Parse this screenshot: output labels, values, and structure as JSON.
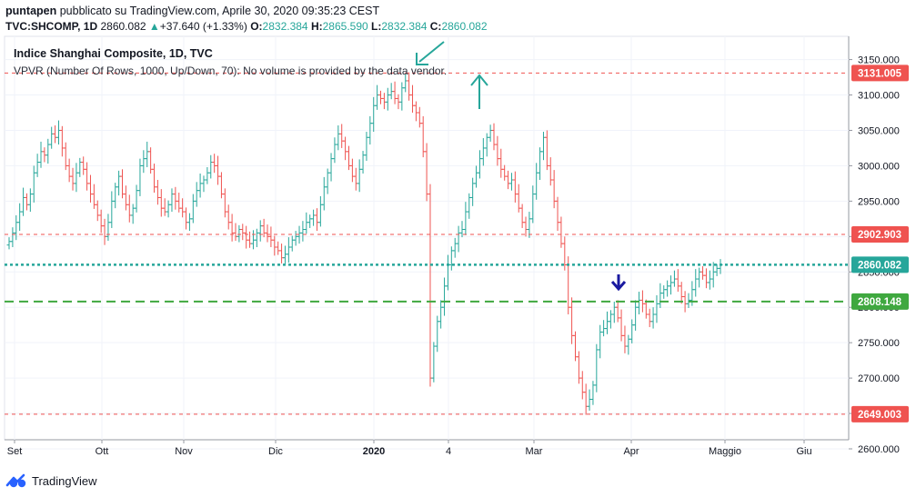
{
  "header": {
    "author": "puntapen",
    "published_text": " pubblicato su TradingView.com, Aprile 30, 2020 09:35:23 CEST",
    "ticker": "TVC:SHCOMP, 1D",
    "last": "2860.082",
    "change": "+37.640 (+1.33%)",
    "o_label": "O:",
    "o": "2832.384",
    "h_label": "H:",
    "h": "2865.590",
    "l_label": "L:",
    "l": "2832.384",
    "c_label": "C:",
    "c": "2860.082"
  },
  "legend": {
    "title": "Indice Shanghai Composite, 1D, TVC",
    "vpvr": "VPVR (Number Of Rows, 1000, Up/Down, 70): No volume is provided by the data vendor."
  },
  "footer": {
    "brand": "TradingView"
  },
  "colors": {
    "up": "#26a69a",
    "down": "#ef5350",
    "line": "#26a69a",
    "green": "#3fa83f",
    "red": "#ef5350",
    "arrow": "#1a1aa0"
  },
  "chart_data": {
    "type": "candlestick",
    "title": "Indice Shanghai Composite, 1D, TVC",
    "ylim": [
      2600,
      3170
    ],
    "y_ticks": [
      2600,
      2650,
      2700,
      2750,
      2800,
      2850,
      2900,
      2950,
      3000,
      3050,
      3100,
      3150
    ],
    "x_ticks": [
      "Set",
      "Ott",
      "Nov",
      "Dic",
      "2020",
      "4",
      "Mar",
      "Apr",
      "Maggio",
      "Giu"
    ],
    "horizontal_lines": [
      {
        "value": 3131.005,
        "label": "3131.005",
        "color": "#ef5350",
        "style": "dashed"
      },
      {
        "value": 2902.903,
        "label": "2902.903",
        "color": "#ef5350",
        "style": "dashed"
      },
      {
        "value": 2860.082,
        "label": "2860.082",
        "color": "#26a69a",
        "style": "dotted"
      },
      {
        "value": 2808.148,
        "label": "2808.148",
        "color": "#3fa83f",
        "style": "dashed"
      },
      {
        "value": 2649.003,
        "label": "2649.003",
        "color": "#ef5350",
        "style": "dashed"
      }
    ],
    "annotations": [
      {
        "type": "arrow-down",
        "color": "#26a69a",
        "near": "2020 top"
      },
      {
        "type": "arrow-up",
        "color": "#26a69a",
        "near": "2020 top"
      },
      {
        "type": "arrow-down",
        "color": "#1a1aa0",
        "near": "Apr support"
      }
    ],
    "close_series": [
      2893,
      2905,
      2920,
      2935,
      2955,
      2945,
      2960,
      2990,
      3005,
      3020,
      3015,
      3030,
      3045,
      3040,
      3050,
      3025,
      3000,
      2985,
      2975,
      2990,
      3005,
      2995,
      2975,
      2960,
      2945,
      2930,
      2915,
      2900,
      2920,
      2950,
      2970,
      2985,
      2960,
      2945,
      2930,
      2940,
      2965,
      3000,
      3010,
      3020,
      2995,
      2970,
      2955,
      2940,
      2935,
      2945,
      2960,
      2950,
      2940,
      2935,
      2920,
      2925,
      2950,
      2965,
      2975,
      2980,
      2990,
      3005,
      3000,
      2985,
      2960,
      2935,
      2920,
      2905,
      2900,
      2910,
      2905,
      2895,
      2890,
      2895,
      2905,
      2915,
      2905,
      2900,
      2895,
      2885,
      2880,
      2870,
      2875,
      2885,
      2895,
      2900,
      2905,
      2910,
      2920,
      2925,
      2930,
      2920,
      2945,
      2970,
      2990,
      3010,
      3030,
      3045,
      3035,
      3020,
      3000,
      2985,
      2975,
      2995,
      3015,
      3040,
      3060,
      3085,
      3100,
      3095,
      3090,
      3100,
      3105,
      3095,
      3090,
      3110,
      3120,
      3100,
      3085,
      3075,
      3060,
      3020,
      2960,
      2700,
      2745,
      2780,
      2800,
      2830,
      2860,
      2880,
      2890,
      2905,
      2910,
      2935,
      2955,
      2975,
      2990,
      3010,
      3025,
      3040,
      3050,
      3030,
      3010,
      2995,
      2985,
      2975,
      2980,
      2960,
      2940,
      2920,
      2910,
      2925,
      2960,
      2990,
      3020,
      3040,
      3000,
      2980,
      2950,
      2920,
      2890,
      2860,
      2800,
      2760,
      2730,
      2700,
      2680,
      2660,
      2670,
      2690,
      2740,
      2765,
      2770,
      2780,
      2790,
      2800,
      2785,
      2760,
      2745,
      2755,
      2775,
      2800,
      2810,
      2805,
      2790,
      2780,
      2790,
      2805,
      2820,
      2825,
      2830,
      2835,
      2840,
      2830,
      2815,
      2805,
      2810,
      2825,
      2840,
      2850,
      2845,
      2835,
      2840,
      2850,
      2855,
      2860.082
    ]
  }
}
